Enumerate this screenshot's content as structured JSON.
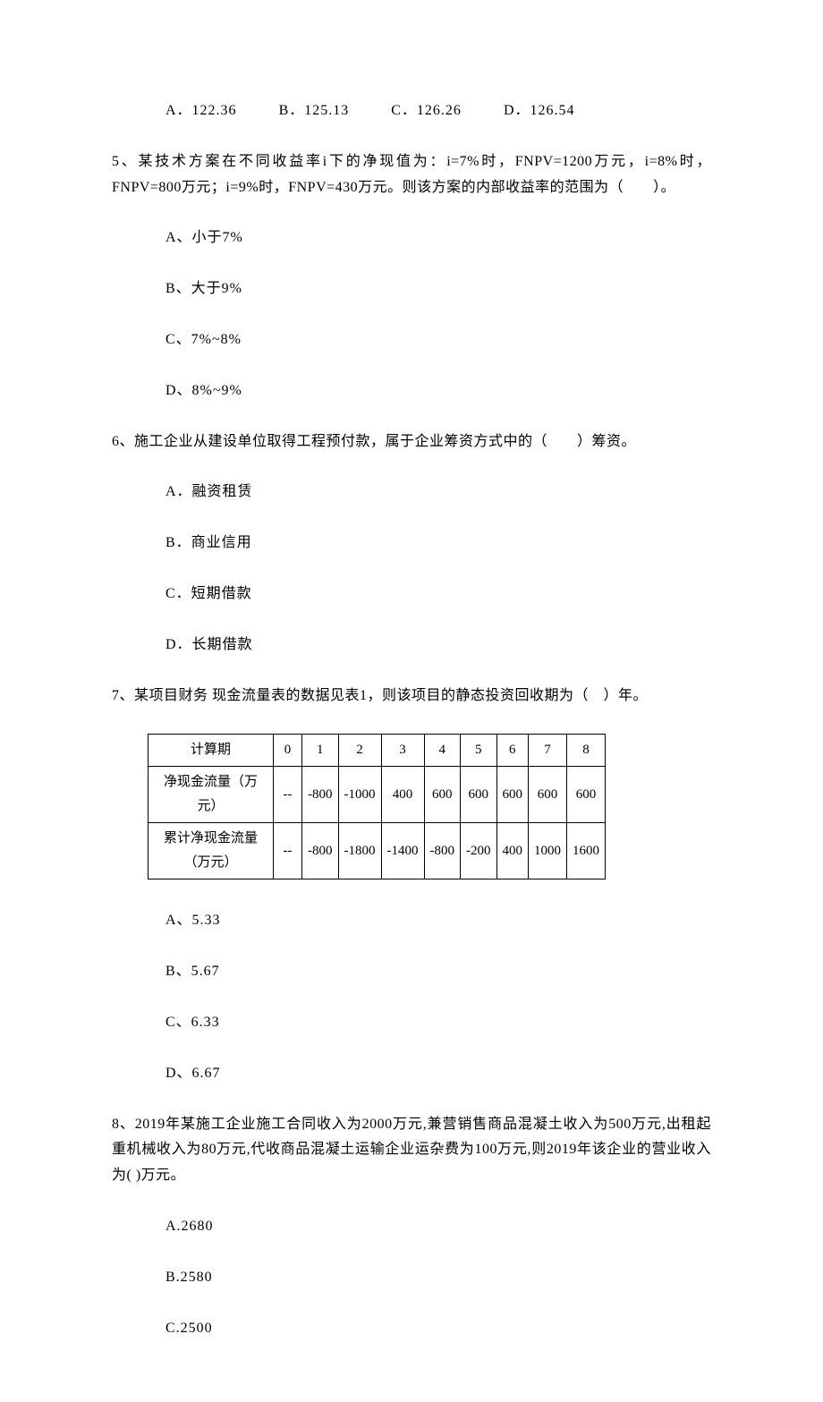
{
  "q4_options": {
    "a": "A．122.36",
    "b": "B．125.13",
    "c": "C．126.26",
    "d": "D．126.54"
  },
  "q5": {
    "text": "5、某技术方案在不同收益率i下的净现值为：i=7%时，FNPV=1200万元，i=8%时，FNPV=800万元；i=9%时，FNPV=430万元。则该方案的内部收益率的范围为（　　）。",
    "a": "A、小于7%",
    "b": "B、大于9%",
    "c": "C、7%~8%",
    "d": "D、8%~9%"
  },
  "q6": {
    "text": "6、施工企业从建设单位取得工程预付款，属于企业筹资方式中的（　　）筹资。",
    "a": "A．融资租赁",
    "b": "B．商业信用",
    "c": "C．短期借款",
    "d": "D．长期借款"
  },
  "q7": {
    "text": "7、某项目财务 现金流量表的数据见表1，则该项目的静态投资回收期为（　）年。",
    "a": "A、5.33",
    "b": "B、5.67",
    "c": "C、6.33",
    "d": "D、6.67",
    "table": {
      "header": [
        "计算期",
        "0",
        "1",
        "2",
        "3",
        "4",
        "5",
        "6",
        "7",
        "8"
      ],
      "row1_label": "净现金流量（万元）",
      "row1": [
        "--",
        "-800",
        "-1000",
        "400",
        "600",
        "600",
        "600",
        "600",
        "600"
      ],
      "row2_label": "累计净现金流量（万元）",
      "row2": [
        "--",
        "-800",
        "-1800",
        "-1400",
        "-800",
        "-200",
        "400",
        "1000",
        "1600"
      ]
    }
  },
  "q8": {
    "text": "8、2019年某施工企业施工合同收入为2000万元,兼营销售商品混凝土收入为500万元,出租起重机械收入为80万元,代收商品混凝土运输企业运杂费为100万元,则2019年该企业的营业收入为( )万元。",
    "a": "A.2680",
    "b": "B.2580",
    "c": "C.2500"
  }
}
